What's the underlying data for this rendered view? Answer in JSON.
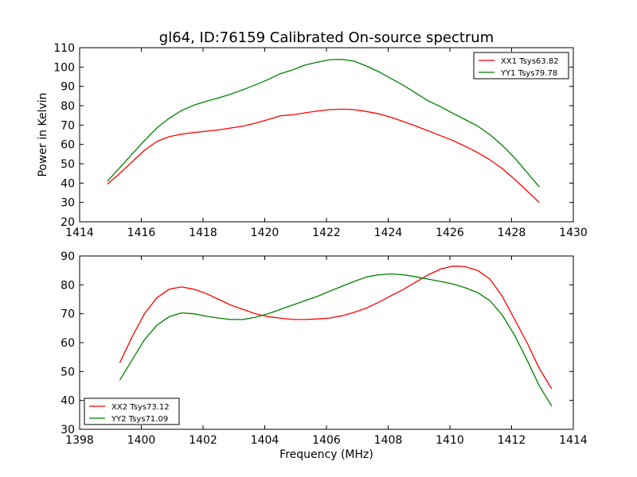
{
  "chart_data": [
    {
      "type": "line",
      "title": "gl64, ID:76159 Calibrated On-source spectrum",
      "xlabel": "",
      "ylabel": "Power in Kelvin",
      "xlim": [
        1414,
        1430
      ],
      "ylim": [
        20,
        110
      ],
      "xticks": [
        1414,
        1416,
        1418,
        1420,
        1422,
        1424,
        1426,
        1428,
        1430
      ],
      "yticks": [
        20,
        30,
        40,
        50,
        60,
        70,
        80,
        90,
        100,
        110
      ],
      "legend": "top-right",
      "series": [
        {
          "name": "XX1 Tsys63.82",
          "color": "#ff0000",
          "x": [
            1414.9,
            1415.3,
            1415.7,
            1416.1,
            1416.5,
            1416.9,
            1417.3,
            1417.7,
            1418.1,
            1418.5,
            1418.9,
            1419.3,
            1419.7,
            1420.1,
            1420.5,
            1420.9,
            1421.3,
            1421.7,
            1422.1,
            1422.5,
            1422.9,
            1423.3,
            1423.7,
            1424.1,
            1424.5,
            1424.9,
            1425.3,
            1425.7,
            1426.1,
            1426.5,
            1426.9,
            1427.3,
            1427.7,
            1428.1,
            1428.5,
            1428.9
          ],
          "y": [
            39.5,
            45,
            51,
            57,
            61.5,
            64,
            65.3,
            66.2,
            66.8,
            67.5,
            68.5,
            69.5,
            71,
            72.8,
            74.8,
            75.3,
            76.3,
            77.3,
            78,
            78.2,
            78,
            77,
            75.8,
            74,
            71.8,
            69.5,
            67,
            64.5,
            62,
            59,
            55.8,
            52,
            47.5,
            42,
            36,
            30
          ]
        },
        {
          "name": "YY1 Tsys79.78",
          "color": "#008000",
          "x": [
            1414.9,
            1415.3,
            1415.7,
            1416.1,
            1416.5,
            1416.9,
            1417.3,
            1417.7,
            1418.1,
            1418.5,
            1418.9,
            1419.3,
            1419.7,
            1420.1,
            1420.5,
            1420.9,
            1421.3,
            1421.7,
            1422.1,
            1422.5,
            1422.9,
            1423.3,
            1423.7,
            1424.1,
            1424.5,
            1424.9,
            1425.3,
            1425.7,
            1426.1,
            1426.5,
            1426.9,
            1427.3,
            1427.7,
            1428.1,
            1428.5,
            1428.9
          ],
          "y": [
            41,
            48,
            55,
            62,
            68.5,
            73.5,
            77.5,
            80.3,
            82.3,
            84,
            86,
            88.3,
            90.8,
            93.5,
            96.5,
            98.5,
            101,
            102.5,
            103.8,
            104,
            103,
            100.5,
            97.5,
            94,
            90.5,
            86.5,
            82.5,
            79.5,
            76,
            72.8,
            69.5,
            65,
            59.5,
            53,
            45.5,
            38
          ]
        }
      ]
    },
    {
      "type": "line",
      "title": "",
      "xlabel": "Frequency (MHz)",
      "ylabel": "",
      "xlim": [
        1398,
        1414
      ],
      "ylim": [
        30,
        90
      ],
      "xticks": [
        1398,
        1400,
        1402,
        1404,
        1406,
        1408,
        1410,
        1412,
        1414
      ],
      "yticks": [
        30,
        40,
        50,
        60,
        70,
        80,
        90
      ],
      "legend": "bottom-left",
      "series": [
        {
          "name": "XX2 Tsys73.12",
          "color": "#ff0000",
          "x": [
            1399.3,
            1399.7,
            1400.1,
            1400.5,
            1400.9,
            1401.3,
            1401.7,
            1402.1,
            1402.5,
            1402.9,
            1403.3,
            1403.7,
            1404.1,
            1404.5,
            1404.9,
            1405.3,
            1405.7,
            1406.1,
            1406.5,
            1406.9,
            1407.3,
            1407.7,
            1408.1,
            1408.5,
            1408.9,
            1409.3,
            1409.7,
            1410.1,
            1410.5,
            1410.9,
            1411.3,
            1411.7,
            1412.1,
            1412.5,
            1412.9,
            1413.3
          ],
          "y": [
            53,
            62,
            70,
            75.5,
            78.5,
            79.3,
            78.5,
            77,
            75,
            73,
            71.5,
            70,
            69,
            68.5,
            68,
            68,
            68.2,
            68.5,
            69.3,
            70.5,
            72,
            74,
            76.3,
            78.5,
            81,
            83.5,
            85.5,
            86.5,
            86.3,
            85,
            82,
            76,
            68,
            60,
            51,
            44
          ]
        },
        {
          "name": "YY2 Tsys71.09",
          "color": "#008000",
          "x": [
            1399.3,
            1399.7,
            1400.1,
            1400.5,
            1400.9,
            1401.3,
            1401.7,
            1402.1,
            1402.5,
            1402.9,
            1403.3,
            1403.7,
            1404.1,
            1404.5,
            1404.9,
            1405.3,
            1405.7,
            1406.1,
            1406.5,
            1406.9,
            1407.3,
            1407.7,
            1408.1,
            1408.5,
            1408.9,
            1409.3,
            1409.7,
            1410.1,
            1410.5,
            1410.9,
            1411.3,
            1411.7,
            1412.1,
            1412.5,
            1412.9,
            1413.3
          ],
          "y": [
            47,
            54,
            61,
            66,
            69,
            70.3,
            70,
            69.2,
            68.5,
            68,
            68,
            68.8,
            70,
            71.5,
            73,
            74.5,
            76,
            77.8,
            79.5,
            81.2,
            82.8,
            83.5,
            83.8,
            83.5,
            82.8,
            82,
            81.2,
            80.3,
            79,
            77.3,
            74.5,
            69.5,
            62.5,
            54,
            45,
            38
          ]
        }
      ]
    }
  ]
}
